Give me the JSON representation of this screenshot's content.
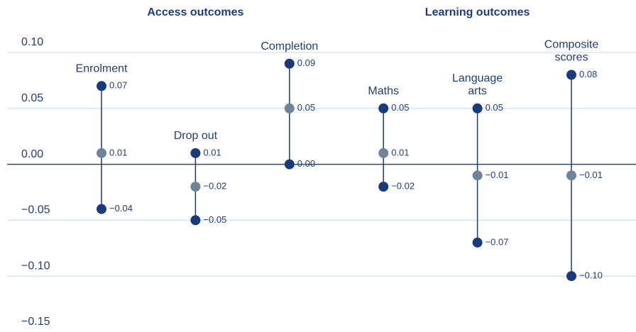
{
  "chart_data": {
    "type": "range",
    "groups": [
      {
        "title": "Access outcomes",
        "span": [
          0,
          2
        ]
      },
      {
        "title": "Learning outcomes",
        "span": [
          3,
          5
        ]
      }
    ],
    "categories": [
      [
        "Enrolment"
      ],
      [
        "Drop out"
      ],
      [
        "Completion"
      ],
      [
        "Maths"
      ],
      [
        "Language",
        "arts"
      ],
      [
        "Composite",
        "scores"
      ]
    ],
    "series": [
      {
        "color": "#1a3a7e",
        "values": [
          0.07,
          0.01,
          0.09,
          0.05,
          0.05,
          0.08
        ],
        "value_labels": [
          "0.07",
          "0.01",
          "0.09",
          "0.05",
          "0.05",
          "0.08"
        ]
      },
      {
        "color": "#6e8499",
        "values": [
          0.01,
          -0.02,
          0.05,
          0.01,
          -0.01,
          -0.01
        ],
        "value_labels": [
          "0.01",
          "−0.02",
          "0.05",
          "0.01",
          "−0.01",
          "−0.01"
        ]
      },
      {
        "color": "#1a3a7e",
        "values": [
          -0.04,
          -0.05,
          0.0,
          -0.02,
          -0.07,
          -0.1
        ],
        "value_labels": [
          "−0.04",
          "−0.05",
          "0.00",
          "−0.02",
          "−0.07",
          "−0.10"
        ]
      }
    ],
    "line_color": "#1a3a7e",
    "ylim": [
      -0.15,
      0.1
    ],
    "yticks": [
      {
        "value": 0.1,
        "label": "0.10"
      },
      {
        "value": 0.05,
        "label": "0.05"
      },
      {
        "value": 0,
        "label": "0.00"
      },
      {
        "value": -0.05,
        "label": "−0.05"
      },
      {
        "value": -0.1,
        "label": "−0.10"
      },
      {
        "value": -0.15,
        "label": "−0.15"
      }
    ],
    "grid": true
  }
}
